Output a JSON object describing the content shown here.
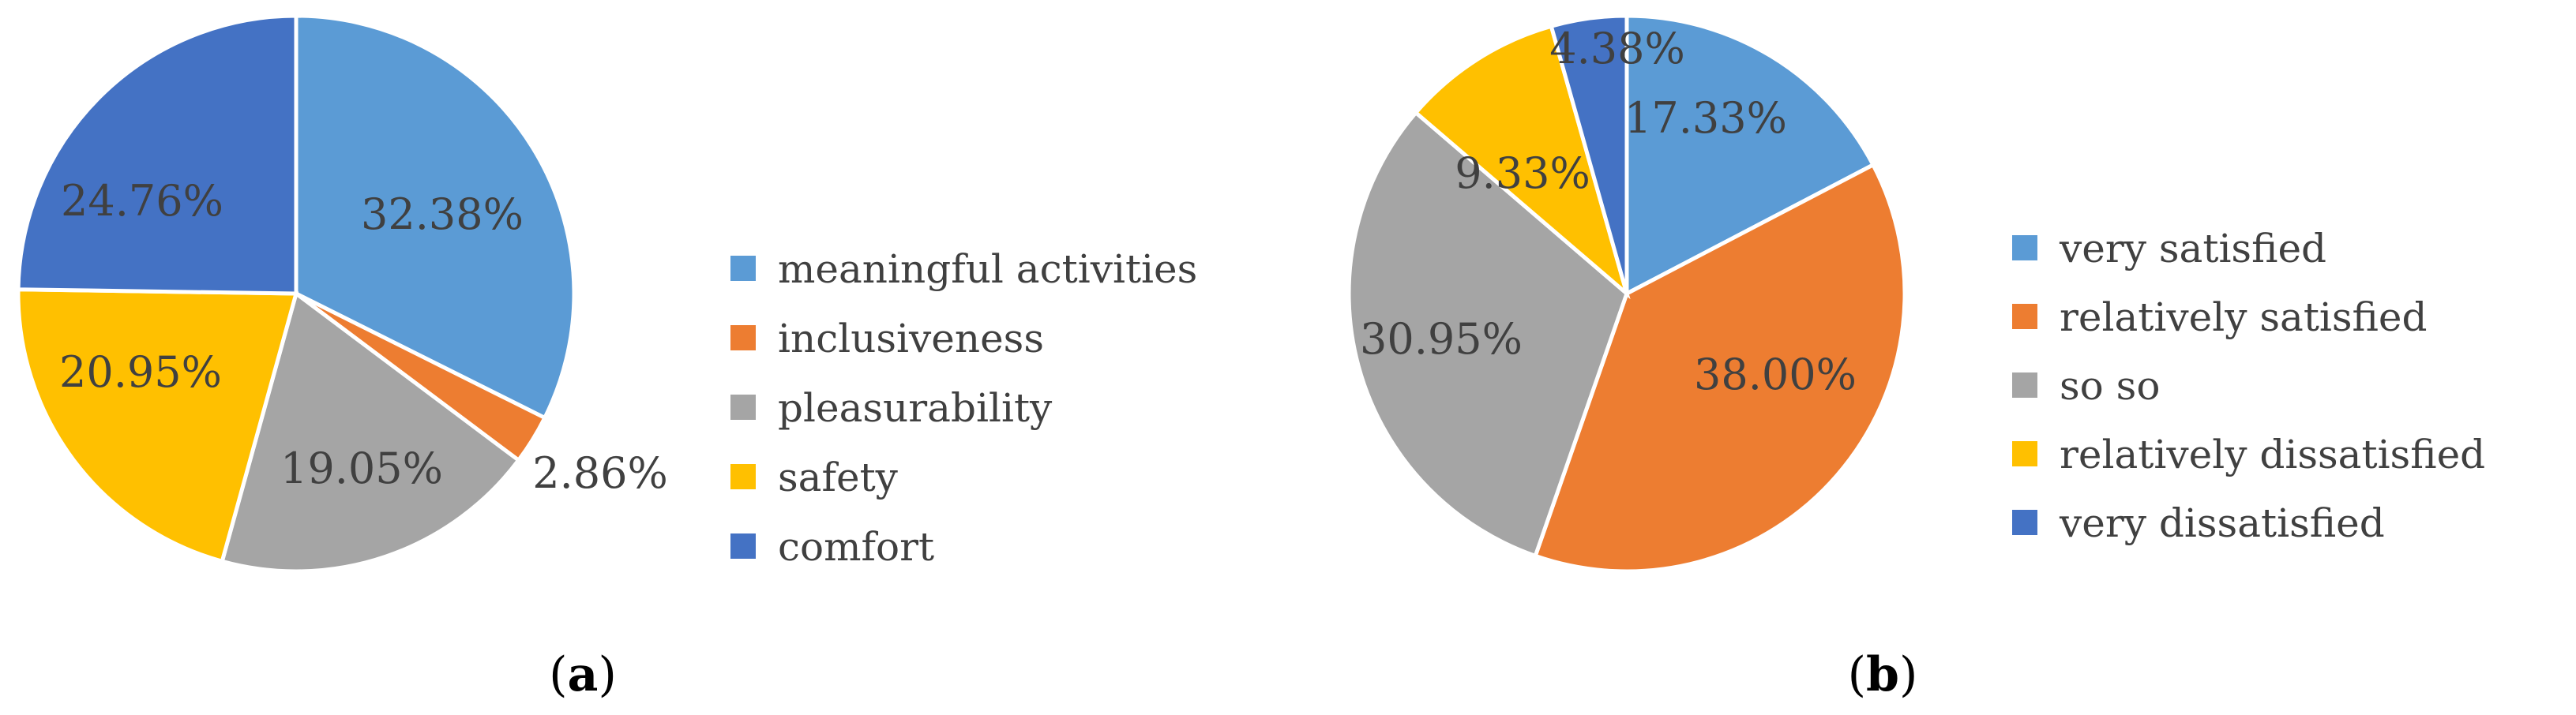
{
  "chart_data": [
    {
      "type": "pie",
      "caption": "a",
      "categories": [
        "meaningful activities",
        "inclusiveness",
        "pleasurability",
        "safety",
        "comfort"
      ],
      "values": [
        32.38,
        2.86,
        19.05,
        20.95,
        24.76
      ],
      "data_labels": [
        "32.38%",
        "2.86%",
        "19.05%",
        "20.95%",
        "24.76%"
      ],
      "colors": [
        "#5B9BD5",
        "#ED7D31",
        "#A5A5A5",
        "#FFC000",
        "#4472C4"
      ],
      "legend_position": "right",
      "start_angle": "12 o'clock",
      "direction": "clockwise"
    },
    {
      "type": "pie",
      "caption": "b",
      "categories": [
        "very satisfied",
        "relatively satisfied",
        "so so",
        "relatively dissatisfied",
        "very dissatisfied"
      ],
      "values": [
        17.33,
        38.0,
        30.95,
        9.33,
        4.38
      ],
      "data_labels": [
        "17.33%",
        "38.00%",
        "30.95%",
        "9.33%",
        "4.38%"
      ],
      "colors": [
        "#5B9BD5",
        "#ED7D31",
        "#A5A5A5",
        "#FFC000",
        "#4472C4"
      ],
      "legend_position": "right",
      "start_angle": "12 o'clock",
      "direction": "clockwise"
    }
  ]
}
